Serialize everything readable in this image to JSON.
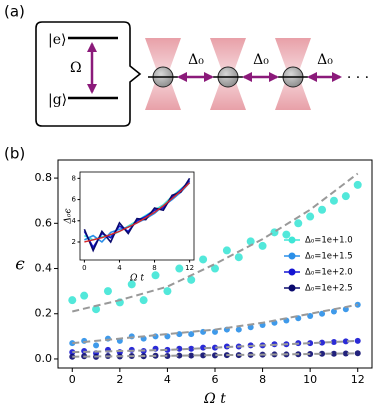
{
  "panel_a": {
    "label": "(a)",
    "excited": "|e⟩",
    "ground": "|g⟩",
    "rabi": "Ω",
    "detunings": [
      "Δ₀",
      "Δ₀",
      "Δ₀"
    ],
    "ellipsis": "· · ·"
  },
  "chart_data": {
    "type": "scatter",
    "panel_label": "(b)",
    "xlabel": "Ω t",
    "ylabel": "ϵ",
    "xlim": [
      -0.6,
      12.6
    ],
    "ylim": [
      -0.04,
      0.88
    ],
    "xticks": [
      0,
      2,
      4,
      6,
      8,
      10,
      12
    ],
    "yticks": [
      {
        "value": 0,
        "label": "0.0"
      },
      0.2,
      0.4,
      0.6,
      0.8
    ],
    "legend": "center right",
    "x": [
      0,
      0.5,
      1,
      1.5,
      2,
      2.5,
      3,
      3.5,
      4,
      4.5,
      5,
      5.5,
      6,
      6.5,
      7,
      7.5,
      8,
      8.5,
      9,
      9.5,
      10,
      10.5,
      11,
      11.5,
      12
    ],
    "series": [
      {
        "name": "Δ₀=1e+1.0",
        "color": "#3fe6d6",
        "values": [
          0.26,
          0.28,
          0.22,
          0.3,
          0.25,
          0.33,
          0.26,
          0.37,
          0.3,
          0.4,
          0.35,
          0.44,
          0.4,
          0.48,
          0.45,
          0.52,
          0.5,
          0.56,
          0.55,
          0.6,
          0.63,
          0.66,
          0.7,
          0.72,
          0.77
        ]
      },
      {
        "name": "Δ₀=1e+1.5",
        "color": "#2a8fe8",
        "values": [
          0.07,
          0.08,
          0.06,
          0.09,
          0.08,
          0.1,
          0.09,
          0.1,
          0.1,
          0.11,
          0.11,
          0.12,
          0.12,
          0.13,
          0.13,
          0.14,
          0.15,
          0.16,
          0.17,
          0.18,
          0.19,
          0.2,
          0.21,
          0.22,
          0.24
        ]
      },
      {
        "name": "Δ₀=1e+2.0",
        "color": "#1414d2",
        "values": [
          0.03,
          0.035,
          0.025,
          0.04,
          0.03,
          0.04,
          0.035,
          0.045,
          0.04,
          0.045,
          0.045,
          0.05,
          0.05,
          0.055,
          0.055,
          0.06,
          0.06,
          0.065,
          0.065,
          0.07,
          0.07,
          0.072,
          0.075,
          0.078,
          0.08
        ]
      },
      {
        "name": "Δ₀=1e+2.5",
        "color": "#0a0a6e",
        "values": [
          0.01,
          0.012,
          0.009,
          0.013,
          0.011,
          0.013,
          0.012,
          0.014,
          0.013,
          0.015,
          0.015,
          0.016,
          0.016,
          0.017,
          0.017,
          0.018,
          0.019,
          0.02,
          0.02,
          0.021,
          0.022,
          0.023,
          0.023,
          0.024,
          0.025
        ]
      }
    ],
    "fit": {
      "color": "#999999",
      "x": [
        0,
        2,
        4,
        6,
        8,
        10,
        12
      ],
      "series": [
        [
          0.21,
          0.26,
          0.32,
          0.42,
          0.53,
          0.66,
          0.82
        ],
        [
          0.07,
          0.09,
          0.11,
          0.13,
          0.16,
          0.2,
          0.24
        ],
        [
          0.03,
          0.035,
          0.04,
          0.05,
          0.06,
          0.07,
          0.08
        ],
        [
          0.01,
          0.012,
          0.014,
          0.017,
          0.019,
          0.022,
          0.025
        ]
      ]
    },
    "inset": {
      "xlabel": "Ω t",
      "ylabel": "Δ₀ϵ",
      "xlim": [
        -0.5,
        12.5
      ],
      "ylim": [
        0.3,
        8.6
      ],
      "xticks": [
        0,
        4,
        8,
        12
      ],
      "yticks": [
        2,
        4,
        6,
        8
      ],
      "x": [
        0,
        1,
        2,
        3,
        4,
        5,
        6,
        7,
        8,
        9,
        10,
        11,
        12
      ],
      "series": [
        {
          "color": "#3fe6d6",
          "values": [
            2.6,
            2.2,
            2.5,
            2.6,
            3.0,
            3.5,
            4.0,
            4.5,
            5.0,
            5.5,
            6.3,
            7.0,
            7.7
          ]
        },
        {
          "color": "#2a8fe8",
          "values": [
            2.2,
            2.6,
            2.0,
            2.9,
            3.2,
            3.4,
            3.8,
            4.2,
            4.7,
            5.4,
            6.0,
            6.7,
            7.6
          ]
        },
        {
          "color": "#1414d2",
          "values": [
            3.0,
            1.5,
            2.8,
            2.4,
            3.5,
            3.0,
            4.0,
            4.4,
            5.0,
            5.2,
            6.2,
            6.9,
            7.8
          ]
        },
        {
          "color": "#0a0a6e",
          "values": [
            3.2,
            1.2,
            3.0,
            2.0,
            3.8,
            2.8,
            4.2,
            4.1,
            5.2,
            5.0,
            6.4,
            6.7,
            8.0
          ]
        }
      ],
      "fit": {
        "color": "#d62728",
        "values": [
          2.0,
          2.2,
          2.4,
          2.7,
          3.0,
          3.4,
          3.8,
          4.3,
          4.8,
          5.4,
          6.1,
          6.8,
          7.6
        ]
      }
    }
  }
}
